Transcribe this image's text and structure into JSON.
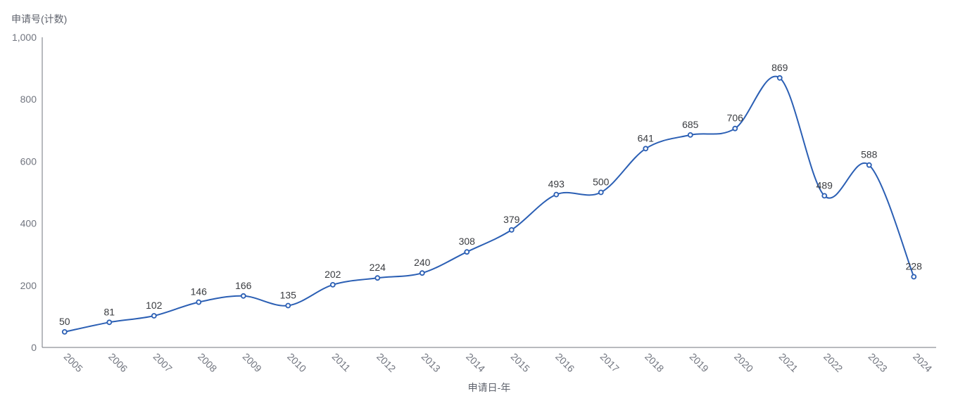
{
  "page": {
    "background": "#ffffff"
  },
  "chart_data": {
    "type": "line",
    "title": "",
    "xlabel": "申请日-年",
    "ylabel": "申请号(计数)",
    "categories": [
      "2005",
      "2006",
      "2007",
      "2008",
      "2009",
      "2010",
      "2011",
      "2012",
      "2013",
      "2014",
      "2015",
      "2016",
      "2017",
      "2018",
      "2019",
      "2020",
      "2021",
      "2022",
      "2023",
      "2024"
    ],
    "values": [
      50,
      81,
      102,
      146,
      166,
      135,
      202,
      224,
      240,
      308,
      379,
      493,
      500,
      641,
      685,
      706,
      869,
      489,
      588,
      228
    ],
    "data_labels": [
      "50",
      "81",
      "102",
      "146",
      "166",
      "135",
      "202",
      "224",
      "240",
      "308",
      "379",
      "493",
      "500",
      "641",
      "685",
      "706",
      "869",
      "489",
      "588",
      "228"
    ],
    "ylim": [
      0,
      1000
    ],
    "y_ticks": [
      {
        "label": "0",
        "value": 0
      },
      {
        "label": "200",
        "value": 200
      },
      {
        "label": "400",
        "value": 400
      },
      {
        "label": "600",
        "value": 600
      },
      {
        "label": "800",
        "value": 800
      },
      {
        "label": "1,000",
        "value": 1000
      }
    ],
    "grid": false,
    "legend": "none",
    "smooth": true,
    "marker": "circle-open",
    "colors": {
      "line": "#2b5fb4",
      "marker_fill": "#ffffff",
      "data_label": "#3a3c40",
      "tick_label": "#71757f",
      "axis_title": "#5f636d",
      "axis_line": "#72757c"
    }
  }
}
